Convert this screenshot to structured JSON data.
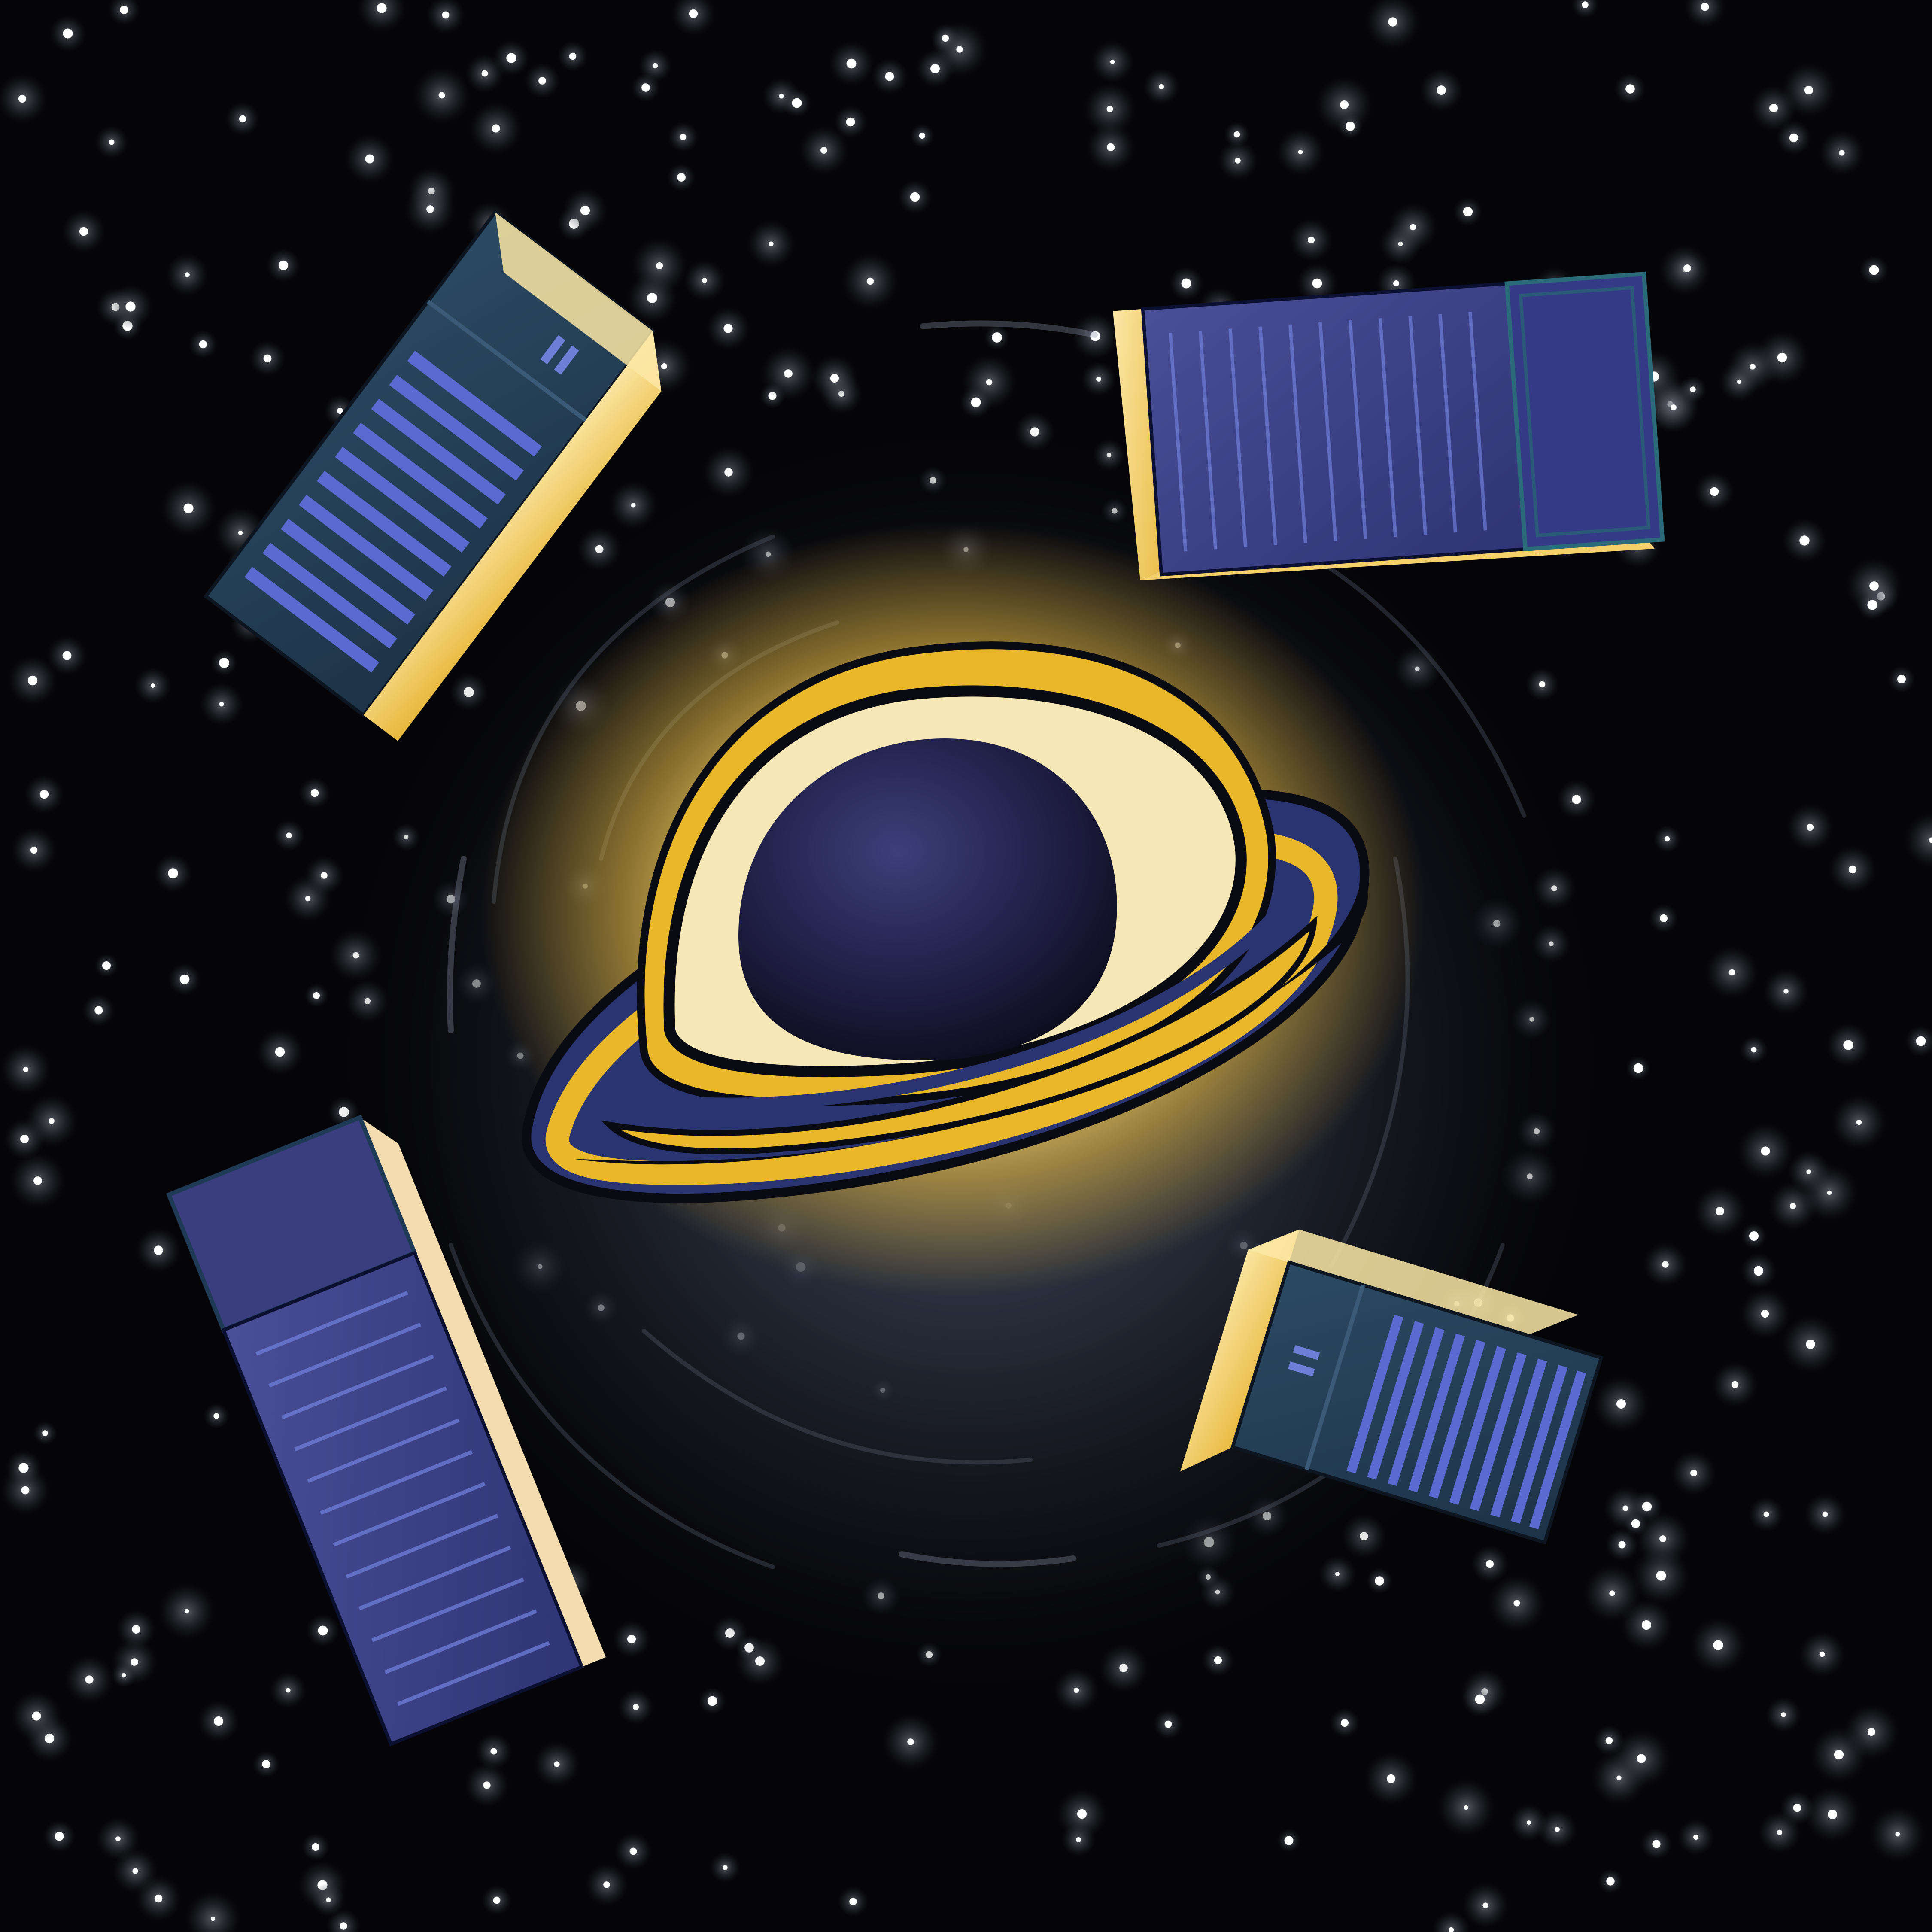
{
  "illustration": {
    "subject": "black-hole-with-shipping-containers",
    "colors": {
      "space": "#050507",
      "vortex": "#2b3140",
      "glow": "#ffd75a",
      "ring_gold": "#e8b72a",
      "ring_cream": "#f6e7b6",
      "ring_blue": "#2a3470",
      "hole": "#1e1d3a",
      "container_dark": "#264156",
      "container_blue": "#3b3f86",
      "container_stripe": "#6f7fd8",
      "container_lit": "#f5cf6a",
      "star": "#ffffff"
    },
    "icons": {
      "black_hole": "black-hole-icon",
      "container": "shipping-container-icon",
      "star": "star-icon"
    },
    "containers_count": 4
  }
}
